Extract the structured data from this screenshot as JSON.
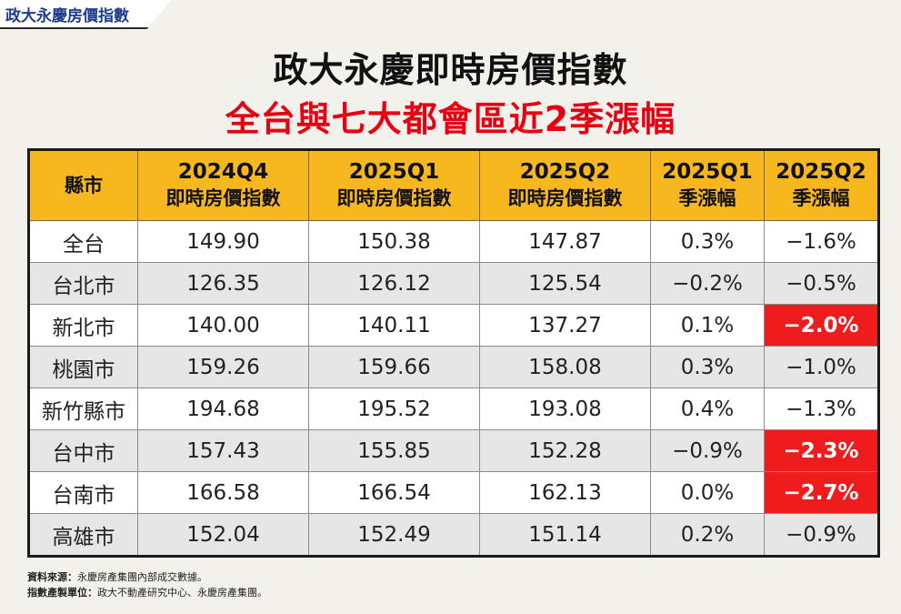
{
  "badge": "政大永慶房價指數",
  "title": "政大永慶即時房價指數",
  "subtitle": "全台與七大都會區近2季漲幅",
  "chart_data": {
    "type": "table",
    "columns": [
      {
        "line1": "縣市",
        "line2": ""
      },
      {
        "line1": "2024Q4",
        "line2": "即時房價指數"
      },
      {
        "line1": "2025Q1",
        "line2": "即時房價指數"
      },
      {
        "line1": "2025Q2",
        "line2": "即時房價指數"
      },
      {
        "line1": "2025Q1",
        "line2": "季漲幅"
      },
      {
        "line1": "2025Q2",
        "line2": "季漲幅"
      }
    ],
    "rows": [
      {
        "city": "全台",
        "q4_2024": "149.90",
        "q1_2025": "150.38",
        "q2_2025": "147.87",
        "chg_q1": "0.3%",
        "chg_q2": "−1.6%",
        "highlight": false
      },
      {
        "city": "台北市",
        "q4_2024": "126.35",
        "q1_2025": "126.12",
        "q2_2025": "125.54",
        "chg_q1": "−0.2%",
        "chg_q2": "−0.5%",
        "highlight": false
      },
      {
        "city": "新北市",
        "q4_2024": "140.00",
        "q1_2025": "140.11",
        "q2_2025": "137.27",
        "chg_q1": "0.1%",
        "chg_q2": "−2.0%",
        "highlight": true
      },
      {
        "city": "桃園市",
        "q4_2024": "159.26",
        "q1_2025": "159.66",
        "q2_2025": "158.08",
        "chg_q1": "0.3%",
        "chg_q2": "−1.0%",
        "highlight": false
      },
      {
        "city": "新竹縣市",
        "q4_2024": "194.68",
        "q1_2025": "195.52",
        "q2_2025": "193.08",
        "chg_q1": "0.4%",
        "chg_q2": "−1.3%",
        "highlight": false
      },
      {
        "city": "台中市",
        "q4_2024": "157.43",
        "q1_2025": "155.85",
        "q2_2025": "152.28",
        "chg_q1": "−0.9%",
        "chg_q2": "−2.3%",
        "highlight": true
      },
      {
        "city": "台南市",
        "q4_2024": "166.58",
        "q1_2025": "166.54",
        "q2_2025": "162.13",
        "chg_q1": "0.0%",
        "chg_q2": "−2.7%",
        "highlight": true
      },
      {
        "city": "高雄市",
        "q4_2024": "152.04",
        "q1_2025": "152.49",
        "q2_2025": "151.14",
        "chg_q1": "0.2%",
        "chg_q2": "−0.9%",
        "highlight": false
      }
    ],
    "highlight_color": "#ee1c1c",
    "header_color": "#f7b81f"
  },
  "footer": {
    "source_label": "資料來源：",
    "source_text": "永慶房產集團內部成交數據。",
    "producer_label": "指數產製單位：",
    "producer_text": "政大不動產研究中心、永慶房產集團。"
  }
}
